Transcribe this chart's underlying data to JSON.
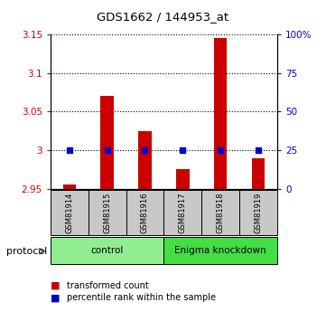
{
  "title": "GDS1662 / 144953_at",
  "samples": [
    "GSM81914",
    "GSM81915",
    "GSM81916",
    "GSM81917",
    "GSM81918",
    "GSM81919"
  ],
  "red_values": [
    2.955,
    3.07,
    3.025,
    2.975,
    3.145,
    2.99
  ],
  "blue_values": [
    3.0,
    3.0,
    3.0,
    3.0,
    3.0,
    3.0
  ],
  "ylim_left": [
    2.95,
    3.15
  ],
  "ylim_right": [
    0,
    100
  ],
  "yticks_left": [
    2.95,
    3.0,
    3.05,
    3.1,
    3.15
  ],
  "yticks_right": [
    0,
    25,
    50,
    75,
    100
  ],
  "ytick_labels_left": [
    "2.95",
    "3",
    "3.05",
    "3.1",
    "3.15"
  ],
  "ytick_labels_right": [
    "0",
    "25",
    "50",
    "75",
    "100%"
  ],
  "groups": [
    {
      "label": "control",
      "start": 0,
      "end": 2,
      "color": "#90ee90"
    },
    {
      "label": "Enigma knockdown",
      "start": 3,
      "end": 5,
      "color": "#44dd44"
    }
  ],
  "protocol_label": "protocol",
  "legend_red": "transformed count",
  "legend_blue": "percentile rank within the sample",
  "bar_color": "#cc0000",
  "dot_color": "#0000cc",
  "background_color": "#ffffff",
  "tick_label_color_left": "#cc0000",
  "tick_label_color_right": "#0000cc",
  "sample_bg_color": "#c8c8c8",
  "bar_bottom": 2.95,
  "bar_width": 0.35
}
